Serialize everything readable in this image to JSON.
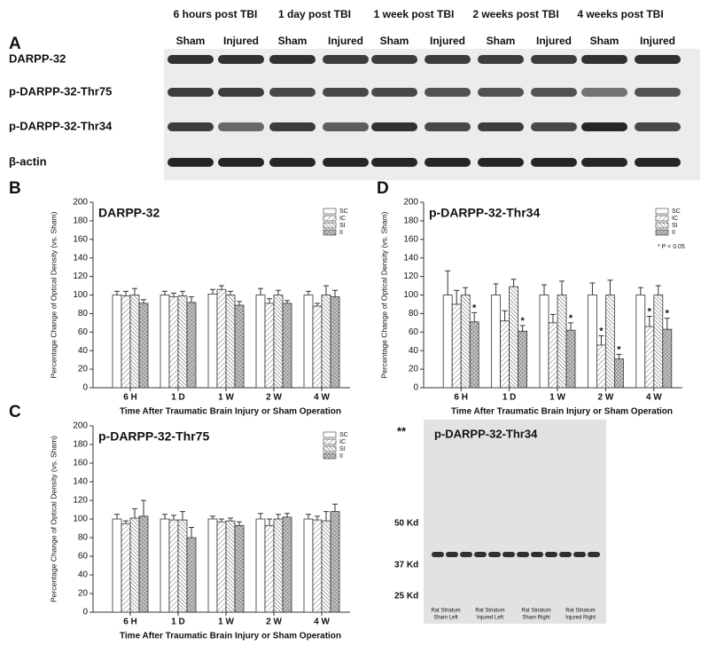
{
  "figure": {
    "blot_a": {
      "label": "A",
      "timepoints": [
        "6 hours post TBI",
        "1 day post TBI",
        "1 week post TBI",
        "2 weeks post TBI",
        "4 weeks post TBI"
      ],
      "groups": [
        "Sham",
        "Injured",
        "Sham",
        "Injured",
        "Sham",
        "Injured",
        "Sham",
        "Injured",
        "Sham",
        "Injured"
      ],
      "rows": [
        "DARPP-32",
        "p-DARPP-32-Thr75",
        "p-DARPP-32-Thr34",
        "β-actin"
      ]
    },
    "blot_e": {
      "label": "**",
      "title": "p-DARPP-32-Thr34",
      "markers": [
        "50 Kd",
        "37 Kd",
        "25 Kd"
      ],
      "lanes": [
        [
          "Rat Striatum",
          "Sham Left"
        ],
        [
          "Rat Striatum",
          "Injured Left"
        ],
        [
          "Rat Striatum",
          "Sham Right"
        ],
        [
          "Rat Striatum",
          "Injured Right"
        ]
      ]
    }
  },
  "chart_data": [
    {
      "type": "bar",
      "panel": "B",
      "title": "DARPP-32",
      "ylabel": "Percentage Change of Optical Density (vs. Sham)",
      "xlabel": "Time After Traumatic Brain Injury or Sham Operation",
      "categories": [
        "6 H",
        "1 D",
        "1 W",
        "2 W",
        "4 W"
      ],
      "ylim": [
        0,
        200
      ],
      "yticks": [
        0,
        20,
        40,
        60,
        80,
        100,
        120,
        140,
        160,
        180,
        200
      ],
      "series": [
        {
          "name": "SC",
          "pattern": "none",
          "values": [
            100,
            100,
            101,
            100,
            100
          ],
          "errors": [
            4,
            4,
            5,
            7,
            4
          ]
        },
        {
          "name": "IC",
          "pattern": "hatch-light",
          "values": [
            99,
            98,
            106,
            91,
            88
          ],
          "errors": [
            5,
            4,
            4,
            5,
            3
          ]
        },
        {
          "name": "SI",
          "pattern": "hatch-dense",
          "values": [
            100,
            99,
            100,
            100,
            100
          ],
          "errors": [
            7,
            5,
            4,
            5,
            10
          ]
        },
        {
          "name": "II",
          "pattern": "crosshatch",
          "values": [
            91,
            92,
            89,
            91,
            98
          ],
          "errors": [
            4,
            6,
            4,
            3,
            7
          ]
        }
      ]
    },
    {
      "type": "bar",
      "panel": "C",
      "title": "p-DARPP-32-Thr75",
      "ylabel": "Percentage Change of Optical Density (vs. Sham)",
      "xlabel": "Time After Traumatic Brain Injury or Sham Operation",
      "categories": [
        "6 H",
        "1 D",
        "1 W",
        "2 W",
        "4 W"
      ],
      "ylim": [
        0,
        200
      ],
      "yticks": [
        0,
        20,
        40,
        60,
        80,
        100,
        120,
        140,
        160,
        180,
        200
      ],
      "series": [
        {
          "name": "SC",
          "pattern": "none",
          "values": [
            100,
            100,
            100,
            100,
            100
          ],
          "errors": [
            5,
            5,
            3,
            6,
            5
          ]
        },
        {
          "name": "IC",
          "pattern": "hatch-light",
          "values": [
            95,
            99,
            97,
            93,
            99
          ],
          "errors": [
            3,
            5,
            3,
            7,
            4
          ]
        },
        {
          "name": "SI",
          "pattern": "hatch-dense",
          "values": [
            101,
            99,
            98,
            100,
            98
          ],
          "errors": [
            10,
            9,
            3,
            5,
            10
          ]
        },
        {
          "name": "II",
          "pattern": "crosshatch",
          "values": [
            103,
            80,
            93,
            102,
            108
          ],
          "errors": [
            17,
            11,
            4,
            4,
            8
          ]
        }
      ]
    },
    {
      "type": "bar",
      "panel": "D",
      "title": "p-DARPP-32-Thr34",
      "ylabel": "Percentage Change of Optical Density (vs. Sham)",
      "xlabel": "Time After Traumatic Brain Injury or Sham Operation",
      "legend_note": "* P < 0.05",
      "categories": [
        "6 H",
        "1 D",
        "1 W",
        "2 W",
        "4 W"
      ],
      "ylim": [
        0,
        200
      ],
      "yticks": [
        0,
        20,
        40,
        60,
        80,
        100,
        120,
        140,
        160,
        180,
        200
      ],
      "series": [
        {
          "name": "SC",
          "pattern": "none",
          "values": [
            100,
            100,
            100,
            100,
            100
          ],
          "errors": [
            26,
            12,
            11,
            13,
            8
          ],
          "significance": [
            null,
            null,
            null,
            null,
            null
          ]
        },
        {
          "name": "IC",
          "pattern": "hatch-light",
          "values": [
            90,
            72,
            70,
            46,
            66
          ],
          "errors": [
            15,
            11,
            9,
            10,
            11
          ],
          "significance": [
            null,
            null,
            null,
            "*",
            "*"
          ]
        },
        {
          "name": "SI",
          "pattern": "hatch-dense",
          "values": [
            100,
            109,
            100,
            100,
            100
          ],
          "errors": [
            8,
            8,
            15,
            16,
            10
          ],
          "significance": [
            null,
            null,
            null,
            null,
            null
          ]
        },
        {
          "name": "II",
          "pattern": "crosshatch",
          "values": [
            71,
            61,
            62,
            31,
            63
          ],
          "errors": [
            10,
            6,
            8,
            5,
            12
          ],
          "significance": [
            "*",
            "*",
            "*",
            "*",
            "*"
          ]
        }
      ]
    }
  ]
}
